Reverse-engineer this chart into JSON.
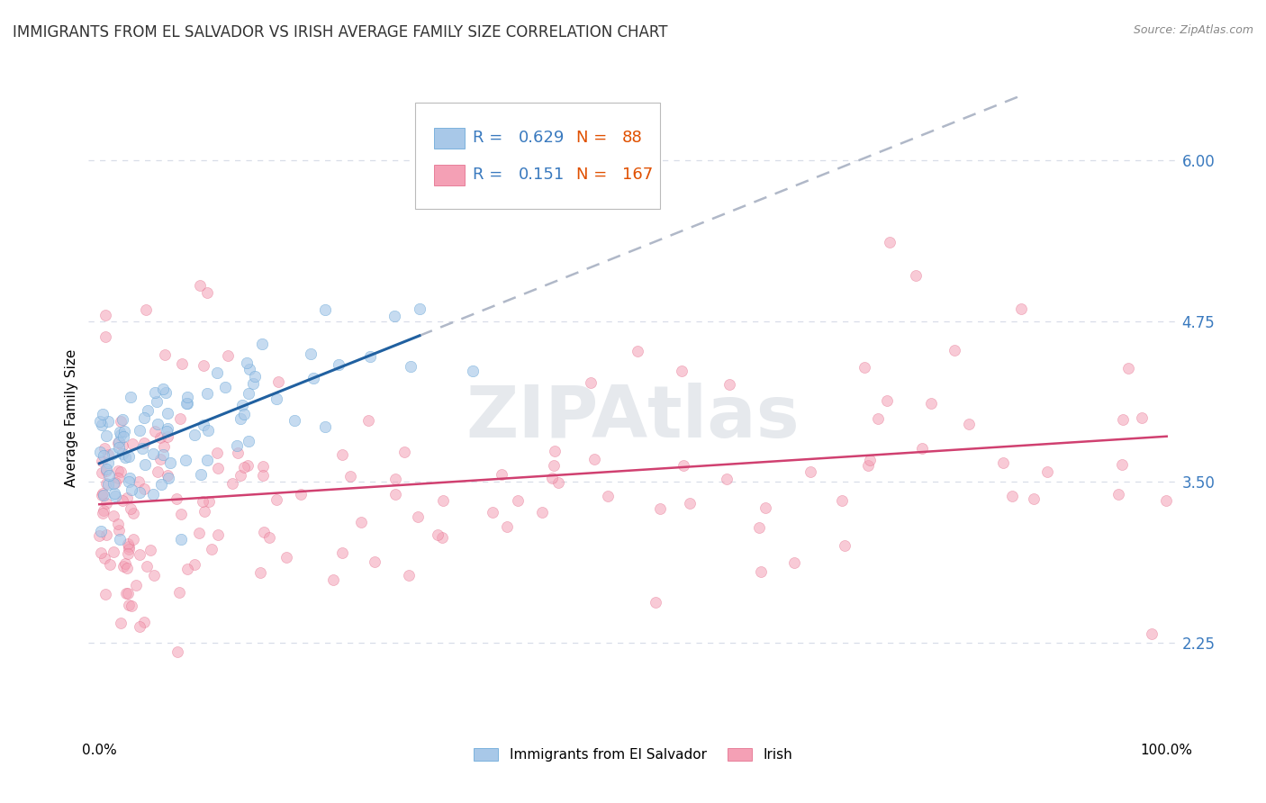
{
  "title": "IMMIGRANTS FROM EL SALVADOR VS IRISH AVERAGE FAMILY SIZE CORRELATION CHART",
  "source": "Source: ZipAtlas.com",
  "ylabel": "Average Family Size",
  "right_yticks": [
    2.25,
    3.5,
    4.75,
    6.0
  ],
  "R_es": 0.629,
  "N_es": 88,
  "R_ir": 0.151,
  "N_ir": 167,
  "el_salvador_color": "#a8c8e8",
  "el_salvador_edge": "#5a9fd4",
  "irish_color": "#f4a0b5",
  "irish_edge": "#e06080",
  "trend_es_color": "#2060a0",
  "trend_ir_color": "#d04070",
  "trend_extend_color": "#b0b8c8",
  "watermark_color": "#c8cfd8",
  "background_color": "#ffffff",
  "grid_color": "#d8dde8",
  "title_fontsize": 12,
  "axis_fontsize": 11,
  "legend_fontsize": 13,
  "legend_R_color": "#3a7abf",
  "legend_N_color": "#e05000",
  "seed": 99
}
